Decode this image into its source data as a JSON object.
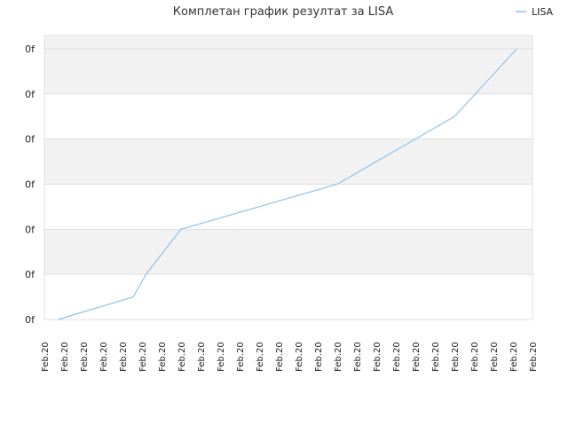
{
  "chart_data": {
    "type": "line",
    "title": "Комплетан график резултат за LISA",
    "legend": {
      "position": "top-right",
      "entries": [
        "LISA"
      ]
    },
    "colors": {
      "line": "#8fc3ec",
      "band": "#f2f2f2",
      "grid": "#dddddd",
      "frame": "#e2e2e2"
    },
    "ytick_labels": [
      "0f",
      "0f",
      "0f",
      "0f",
      "0f",
      "0f",
      "0f"
    ],
    "ylim": [
      0,
      6
    ],
    "xlim": [
      0,
      25
    ],
    "x_labels": [
      "Feb.20",
      "Feb.20",
      "Feb.20",
      "Feb.20",
      "Feb.20",
      "Feb.20",
      "Feb.20",
      "Feb.20",
      "Feb.20",
      "Feb.20",
      "Feb.20",
      "Feb.20",
      "Feb.20",
      "Feb.20",
      "Feb.20",
      "Feb.20",
      "Feb.20",
      "Feb.20",
      "Feb.20",
      "Feb.20",
      "Feb.20",
      "Feb.20",
      "Feb.20",
      "Feb.20",
      "Feb.20",
      "Feb.20"
    ],
    "grid": true,
    "series": [
      {
        "name": "LISA",
        "points": [
          [
            0.7,
            0.0
          ],
          [
            4.55,
            0.5
          ],
          [
            5.2,
            1.0
          ],
          [
            7.0,
            2.0
          ],
          [
            15.0,
            3.0
          ],
          [
            21.0,
            4.5
          ],
          [
            24.2,
            6.0
          ]
        ]
      }
    ]
  }
}
